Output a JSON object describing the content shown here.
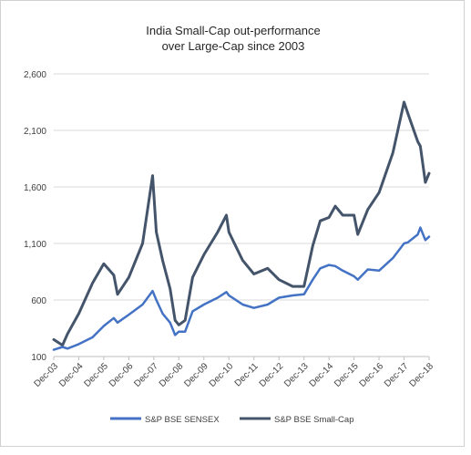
{
  "chart_data": {
    "type": "line",
    "title": [
      "India Small-Cap out-performance",
      "over Large-Cap since 2003"
    ],
    "xlabel": "",
    "ylabel": "",
    "ylim": [
      100,
      2600
    ],
    "yticks": [
      "100",
      "600",
      "1,100",
      "1,600",
      "2,100",
      "2,600"
    ],
    "xlim": [
      2003.95,
      2018.95
    ],
    "xticks": [
      "Dec-03",
      "Dec-04",
      "Dec-05",
      "Dec-06",
      "Dec-07",
      "Dec-08",
      "Dec-09",
      "Dec-10",
      "Dec-11",
      "Dec-12",
      "Dec-13",
      "Dec-14",
      "Dec-15",
      "Dec-16",
      "Dec-17",
      "Dec-18"
    ],
    "grid": true,
    "legend": "bottom",
    "series": [
      {
        "name": "S&P BSE SENSEX",
        "color": "#4472c4",
        "x": [
          2003.95,
          2004.3,
          2004.5,
          2004.95,
          2005.5,
          2005.95,
          2006.35,
          2006.5,
          2006.95,
          2007.5,
          2007.9,
          2008.05,
          2008.3,
          2008.6,
          2008.8,
          2008.95,
          2009.2,
          2009.5,
          2009.95,
          2010.5,
          2010.85,
          2010.95,
          2011.5,
          2011.95,
          2012.5,
          2012.95,
          2013.5,
          2013.95,
          2014.3,
          2014.6,
          2014.95,
          2015.2,
          2015.5,
          2015.95,
          2016.1,
          2016.5,
          2016.95,
          2017.5,
          2017.95,
          2018.1,
          2018.5,
          2018.6,
          2018.8,
          2018.95
        ],
        "y": [
          160,
          185,
          170,
          210,
          270,
          370,
          440,
          400,
          470,
          560,
          680,
          600,
          480,
          400,
          290,
          320,
          320,
          500,
          560,
          620,
          670,
          640,
          560,
          530,
          560,
          620,
          640,
          650,
          780,
          880,
          910,
          900,
          860,
          810,
          780,
          870,
          860,
          970,
          1100,
          1110,
          1180,
          1240,
          1130,
          1160
        ]
      },
      {
        "name": "S&P BSE Small-Cap",
        "color": "#44546a",
        "x": [
          2003.95,
          2004.3,
          2004.5,
          2004.95,
          2005.5,
          2005.95,
          2006.35,
          2006.5,
          2006.95,
          2007.5,
          2007.9,
          2008.05,
          2008.3,
          2008.6,
          2008.8,
          2008.95,
          2009.2,
          2009.5,
          2009.95,
          2010.5,
          2010.85,
          2010.95,
          2011.5,
          2011.95,
          2012.5,
          2012.95,
          2013.5,
          2013.95,
          2014.3,
          2014.6,
          2014.95,
          2015.2,
          2015.5,
          2015.95,
          2016.1,
          2016.5,
          2016.95,
          2017.5,
          2017.95,
          2018.1,
          2018.5,
          2018.6,
          2018.8,
          2018.95
        ],
        "y": [
          250,
          200,
          300,
          480,
          750,
          920,
          820,
          650,
          800,
          1100,
          1700,
          1200,
          950,
          700,
          420,
          380,
          420,
          800,
          1000,
          1200,
          1350,
          1200,
          950,
          830,
          880,
          780,
          720,
          720,
          1080,
          1300,
          1330,
          1430,
          1350,
          1350,
          1180,
          1400,
          1550,
          1900,
          2350,
          2250,
          2000,
          1960,
          1640,
          1720
        ]
      }
    ]
  }
}
